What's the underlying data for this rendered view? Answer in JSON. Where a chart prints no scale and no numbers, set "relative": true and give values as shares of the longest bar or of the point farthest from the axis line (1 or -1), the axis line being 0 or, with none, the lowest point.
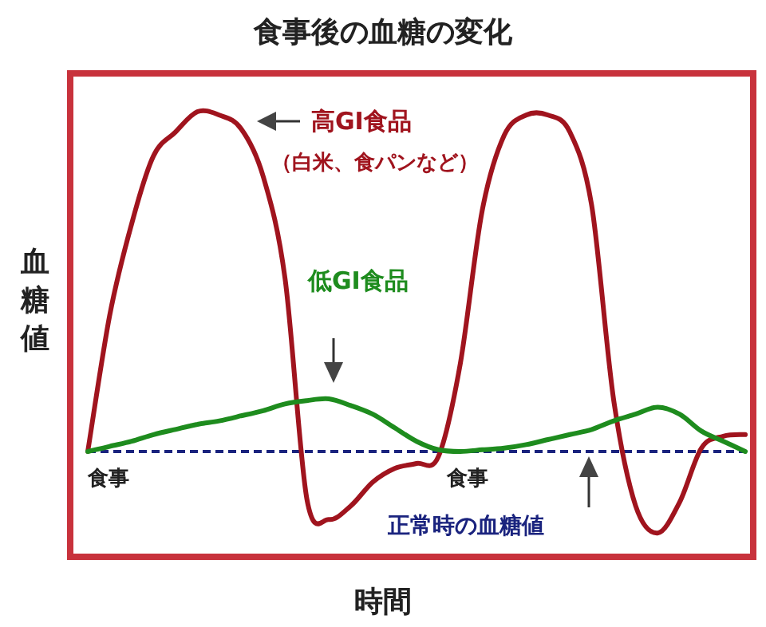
{
  "chart_data": {
    "type": "line",
    "title": "食事後の血糖の変化",
    "xlabel": "時間",
    "ylabel": "血糖値",
    "relative": true,
    "categories": [
      null,
      null,
      null,
      null,
      null,
      null,
      null,
      null,
      null,
      null,
      null,
      null,
      null,
      null,
      null,
      null,
      null,
      null,
      null,
      null,
      null,
      null,
      null,
      null,
      null,
      null,
      null,
      null,
      null,
      null,
      null
    ],
    "series": [
      {
        "name": "高GI食品",
        "color": "#a0141e",
        "values": [
          0,
          0.4,
          0.67,
          0.87,
          0.94,
          1.0,
          0.99,
          0.95,
          0.81,
          0.51,
          -0.14,
          -0.2,
          -0.16,
          -0.09,
          -0.05,
          -0.035,
          -0.015,
          0.26,
          0.71,
          0.93,
          0.99,
          0.99,
          0.94,
          0.72,
          0.15,
          -0.16,
          -0.24,
          -0.15,
          0.01,
          0.045,
          0.05
        ]
      },
      {
        "name": "低GI食品",
        "color": "#1e8c1e",
        "values": [
          0,
          0.015,
          0.03,
          0.05,
          0.065,
          0.08,
          0.09,
          0.105,
          0.12,
          0.14,
          0.15,
          0.155,
          0.135,
          0.11,
          0.07,
          0.03,
          0.005,
          0,
          0.005,
          0.01,
          0.02,
          0.035,
          0.05,
          0.065,
          0.09,
          0.11,
          0.13,
          0.11,
          0.06,
          0.03,
          0
        ]
      }
    ],
    "ref_lines": [
      {
        "axis": "y",
        "value": 0,
        "label": "正常時の血糖値",
        "color": "#1a237e",
        "line_style": "dashed"
      }
    ],
    "annotations": [
      "（白米、食パンなど）",
      "食事",
      "食事"
    ]
  }
}
